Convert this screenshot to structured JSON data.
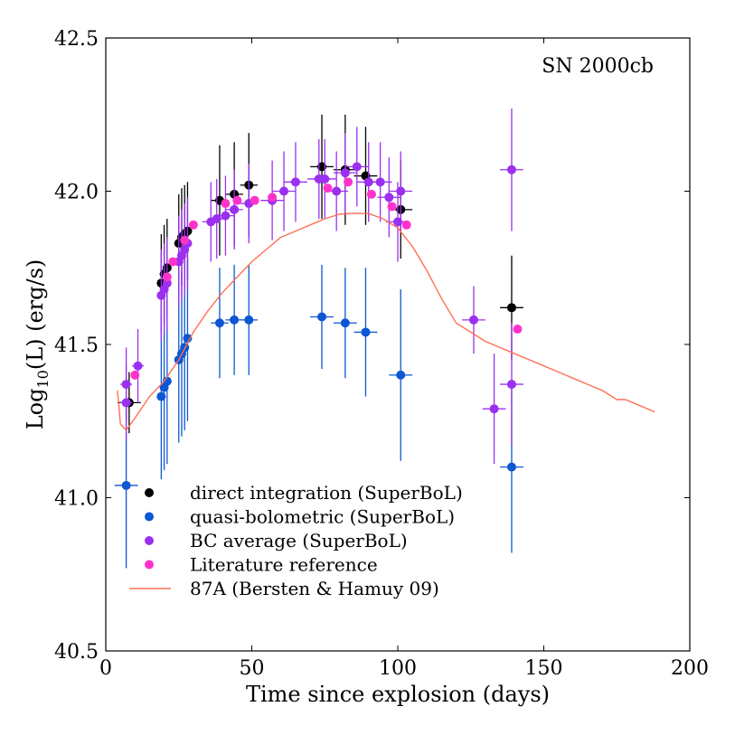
{
  "chart_data": {
    "type": "scatter",
    "title": "SN 2000cb",
    "xlabel": "Time since explosion (days)",
    "ylabel_main": "Log",
    "ylabel_sub": "10",
    "ylabel_rest": "(L) (erg/s)",
    "xlim": [
      0,
      200
    ],
    "ylim": [
      40.5,
      42.5
    ],
    "xticks": [
      0,
      50,
      100,
      150,
      200
    ],
    "yticks": [
      40.5,
      41.0,
      41.5,
      42.0,
      42.5
    ],
    "ytick_labels": [
      "40.5",
      "41.0",
      "41.5",
      "42.0",
      "42.5"
    ],
    "legend_position": "lower-left",
    "series": [
      {
        "name": "direct integration (SuperBoL)",
        "color": "#000000",
        "style": "marker",
        "points": [
          {
            "x": 8,
            "y": 41.31,
            "xerr": 4,
            "yerr": 0.1
          },
          {
            "x": 19,
            "y": 41.7,
            "xerr": 1.5,
            "yerr": 0.16
          },
          {
            "x": 20,
            "y": 41.73,
            "xerr": 1.5,
            "yerr": 0.16
          },
          {
            "x": 21,
            "y": 41.75,
            "xerr": 1.5,
            "yerr": 0.16
          },
          {
            "x": 25,
            "y": 41.83,
            "xerr": 1.5,
            "yerr": 0.16
          },
          {
            "x": 26,
            "y": 41.85,
            "xerr": 1.5,
            "yerr": 0.16
          },
          {
            "x": 27,
            "y": 41.86,
            "xerr": 1.5,
            "yerr": 0.16
          },
          {
            "x": 28,
            "y": 41.87,
            "xerr": 1.5,
            "yerr": 0.16
          },
          {
            "x": 39,
            "y": 41.97,
            "xerr": 3,
            "yerr": 0.18
          },
          {
            "x": 44,
            "y": 41.99,
            "xerr": 3,
            "yerr": 0.17
          },
          {
            "x": 49,
            "y": 42.02,
            "xerr": 3,
            "yerr": 0.17
          },
          {
            "x": 74,
            "y": 42.08,
            "xerr": 4,
            "yerr": 0.17
          },
          {
            "x": 82,
            "y": 42.07,
            "xerr": 4,
            "yerr": 0.18
          },
          {
            "x": 89,
            "y": 42.05,
            "xerr": 4,
            "yerr": 0.16
          },
          {
            "x": 101,
            "y": 41.94,
            "xerr": 4,
            "yerr": 0.16
          },
          {
            "x": 139,
            "y": 41.62,
            "xerr": 4,
            "yerr": 0.17
          }
        ]
      },
      {
        "name": "quasi-bolometric (SuperBoL)",
        "color": "#0d57d2",
        "style": "marker",
        "points": [
          {
            "x": 7,
            "y": 41.04,
            "xerr": 4,
            "yerr": 0.27
          },
          {
            "x": 19,
            "y": 41.33,
            "xerr": 1.5,
            "yerr": 0.27
          },
          {
            "x": 20,
            "y": 41.36,
            "xerr": 1.5,
            "yerr": 0.27
          },
          {
            "x": 21,
            "y": 41.38,
            "xerr": 1.5,
            "yerr": 0.27
          },
          {
            "x": 25,
            "y": 41.45,
            "xerr": 1.5,
            "yerr": 0.27
          },
          {
            "x": 26,
            "y": 41.47,
            "xerr": 1.5,
            "yerr": 0.27
          },
          {
            "x": 27,
            "y": 41.49,
            "xerr": 1.5,
            "yerr": 0.27
          },
          {
            "x": 28,
            "y": 41.52,
            "xerr": 1.5,
            "yerr": 0.27
          },
          {
            "x": 39,
            "y": 41.57,
            "xerr": 3,
            "yerr": 0.18
          },
          {
            "x": 44,
            "y": 41.58,
            "xerr": 3,
            "yerr": 0.18
          },
          {
            "x": 49,
            "y": 41.58,
            "xerr": 3,
            "yerr": 0.18
          },
          {
            "x": 74,
            "y": 41.59,
            "xerr": 4,
            "yerr": 0.17
          },
          {
            "x": 82,
            "y": 41.57,
            "xerr": 4,
            "yerr": 0.18
          },
          {
            "x": 89,
            "y": 41.54,
            "xerr": 4,
            "yerr": 0.21
          },
          {
            "x": 101,
            "y": 41.4,
            "xerr": 4,
            "yerr": 0.28
          },
          {
            "x": 139,
            "y": 41.1,
            "xerr": 4,
            "yerr": 0.28
          }
        ]
      },
      {
        "name": "BC average (SuperBoL)",
        "color": "#9b30f0",
        "style": "marker",
        "points": [
          {
            "x": 7,
            "y": 41.37,
            "xerr": 2,
            "yerr": 0.12
          },
          {
            "x": 7,
            "y": 41.31,
            "xerr": 2,
            "yerr": 0.12
          },
          {
            "x": 11,
            "y": 41.43,
            "xerr": 2,
            "yerr": 0.12
          },
          {
            "x": 19,
            "y": 41.66,
            "xerr": 1.5,
            "yerr": 0.15
          },
          {
            "x": 20,
            "y": 41.68,
            "xerr": 1.5,
            "yerr": 0.15
          },
          {
            "x": 21,
            "y": 41.7,
            "xerr": 1.5,
            "yerr": 0.15
          },
          {
            "x": 25,
            "y": 41.77,
            "xerr": 1.5,
            "yerr": 0.15
          },
          {
            "x": 26,
            "y": 41.79,
            "xerr": 1.5,
            "yerr": 0.15
          },
          {
            "x": 27,
            "y": 41.81,
            "xerr": 1.5,
            "yerr": 0.15
          },
          {
            "x": 28,
            "y": 41.83,
            "xerr": 1.5,
            "yerr": 0.15
          },
          {
            "x": 36,
            "y": 41.9,
            "xerr": 3,
            "yerr": 0.13
          },
          {
            "x": 38,
            "y": 41.91,
            "xerr": 3,
            "yerr": 0.13
          },
          {
            "x": 41,
            "y": 41.92,
            "xerr": 3,
            "yerr": 0.13
          },
          {
            "x": 44,
            "y": 41.94,
            "xerr": 3,
            "yerr": 0.13
          },
          {
            "x": 49,
            "y": 41.96,
            "xerr": 3,
            "yerr": 0.13
          },
          {
            "x": 57,
            "y": 41.97,
            "xerr": 4,
            "yerr": 0.13
          },
          {
            "x": 61,
            "y": 42.0,
            "xerr": 4,
            "yerr": 0.13
          },
          {
            "x": 65,
            "y": 42.03,
            "xerr": 4,
            "yerr": 0.13
          },
          {
            "x": 73,
            "y": 42.04,
            "xerr": 4,
            "yerr": 0.13
          },
          {
            "x": 75,
            "y": 42.04,
            "xerr": 4,
            "yerr": 0.13
          },
          {
            "x": 79,
            "y": 42.0,
            "xerr": 4,
            "yerr": 0.13
          },
          {
            "x": 82,
            "y": 42.06,
            "xerr": 4,
            "yerr": 0.13
          },
          {
            "x": 86,
            "y": 42.08,
            "xerr": 4,
            "yerr": 0.13
          },
          {
            "x": 90,
            "y": 42.03,
            "xerr": 4,
            "yerr": 0.13
          },
          {
            "x": 94,
            "y": 42.03,
            "xerr": 4,
            "yerr": 0.13
          },
          {
            "x": 97,
            "y": 41.98,
            "xerr": 4,
            "yerr": 0.13
          },
          {
            "x": 100,
            "y": 41.9,
            "xerr": 4,
            "yerr": 0.13
          },
          {
            "x": 101,
            "y": 42.0,
            "xerr": 4,
            "yerr": 0.13
          },
          {
            "x": 126,
            "y": 41.58,
            "xerr": 4,
            "yerr": 0.11
          },
          {
            "x": 133,
            "y": 41.29,
            "xerr": 4,
            "yerr": 0.18
          },
          {
            "x": 139,
            "y": 42.07,
            "xerr": 4,
            "yerr": 0.2
          },
          {
            "x": 139,
            "y": 41.37,
            "xerr": 4,
            "yerr": 0.2
          }
        ]
      },
      {
        "name": "Literature reference",
        "color": "#ff33cc",
        "style": "marker",
        "points": [
          {
            "x": 10,
            "y": 41.4
          },
          {
            "x": 21,
            "y": 41.72
          },
          {
            "x": 23,
            "y": 41.77
          },
          {
            "x": 27,
            "y": 41.84
          },
          {
            "x": 30,
            "y": 41.89
          },
          {
            "x": 41,
            "y": 41.96
          },
          {
            "x": 45,
            "y": 41.97
          },
          {
            "x": 51,
            "y": 41.97
          },
          {
            "x": 57,
            "y": 41.98
          },
          {
            "x": 76,
            "y": 42.01
          },
          {
            "x": 83,
            "y": 42.03
          },
          {
            "x": 91,
            "y": 41.99
          },
          {
            "x": 98,
            "y": 41.95
          },
          {
            "x": 103,
            "y": 41.89
          },
          {
            "x": 141,
            "y": 41.55
          }
        ]
      },
      {
        "name": "87A (Bersten & Hamuy 09)",
        "color": "#ff7055",
        "style": "line",
        "points": [
          {
            "x": 4,
            "y": 41.35
          },
          {
            "x": 4.5,
            "y": 41.3
          },
          {
            "x": 5,
            "y": 41.24
          },
          {
            "x": 7,
            "y": 41.22
          },
          {
            "x": 10,
            "y": 41.26
          },
          {
            "x": 15,
            "y": 41.33
          },
          {
            "x": 20,
            "y": 41.38
          },
          {
            "x": 25,
            "y": 41.45
          },
          {
            "x": 30,
            "y": 41.54
          },
          {
            "x": 35,
            "y": 41.61
          },
          {
            "x": 40,
            "y": 41.67
          },
          {
            "x": 45,
            "y": 41.72
          },
          {
            "x": 50,
            "y": 41.77
          },
          {
            "x": 55,
            "y": 41.81
          },
          {
            "x": 60,
            "y": 41.85
          },
          {
            "x": 65,
            "y": 41.87
          },
          {
            "x": 70,
            "y": 41.89
          },
          {
            "x": 75,
            "y": 41.91
          },
          {
            "x": 80,
            "y": 41.925
          },
          {
            "x": 85,
            "y": 41.928
          },
          {
            "x": 90,
            "y": 41.927
          },
          {
            "x": 95,
            "y": 41.91
          },
          {
            "x": 100,
            "y": 41.88
          },
          {
            "x": 105,
            "y": 41.82
          },
          {
            "x": 110,
            "y": 41.74
          },
          {
            "x": 115,
            "y": 41.65
          },
          {
            "x": 120,
            "y": 41.57
          },
          {
            "x": 125,
            "y": 41.54
          },
          {
            "x": 130,
            "y": 41.51
          },
          {
            "x": 135,
            "y": 41.49
          },
          {
            "x": 140,
            "y": 41.47
          },
          {
            "x": 145,
            "y": 41.45
          },
          {
            "x": 150,
            "y": 41.43
          },
          {
            "x": 155,
            "y": 41.41
          },
          {
            "x": 160,
            "y": 41.39
          },
          {
            "x": 165,
            "y": 41.37
          },
          {
            "x": 170,
            "y": 41.35
          },
          {
            "x": 175,
            "y": 41.32
          },
          {
            "x": 178,
            "y": 41.32
          },
          {
            "x": 183,
            "y": 41.3
          },
          {
            "x": 188,
            "y": 41.28
          }
        ]
      }
    ]
  }
}
